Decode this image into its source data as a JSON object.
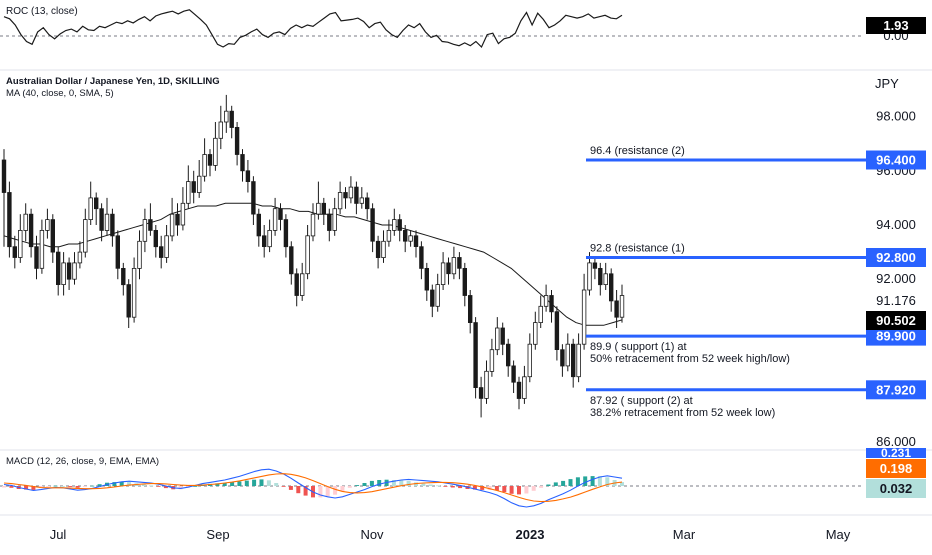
{
  "chart_data": [
    {
      "type": "line",
      "title": "ROC (13, close)",
      "series": [
        {
          "name": "ROC (13, close)",
          "values": [
            2.8,
            2.5,
            1.6,
            0.2,
            -0.8,
            -1.2,
            0.6,
            1.2,
            0.2,
            -0.4,
            0.3,
            0.8,
            1.0,
            0.6,
            1.4,
            0.9,
            0.8,
            1.4,
            1.2,
            1.6,
            2.0,
            1.8,
            2.2,
            1.9,
            2.4,
            2.8,
            2.2,
            2.9,
            3.2,
            3.4,
            3.6,
            3.2,
            3.6,
            3.8,
            3.1,
            2.4,
            1.6,
            0.2,
            -1.2,
            -1.6,
            -1.1,
            -1.2,
            -0.2,
            0.1,
            0.6,
            1.0,
            0.2,
            -0.2,
            0.4,
            0.6,
            0.2,
            1.1,
            1.6,
            1.2,
            1.6,
            1.4,
            2.0,
            2.6,
            3.2,
            3.4,
            2.2,
            2.3,
            2.4,
            2.6,
            2.1,
            1.2,
            1.8,
            2.0,
            0.9,
            0.2,
            -0.2,
            0.8,
            1.6,
            1.2,
            1.8,
            0.6,
            -0.2,
            0.1,
            -0.8,
            -0.9,
            -1.2,
            -1.4,
            -1.0,
            -1.4,
            -0.8,
            -1.6,
            0.2,
            0.4,
            -1.1,
            -0.4,
            -0.2,
            0.4,
            2.2,
            3.4,
            1.6,
            3.3,
            2.4,
            1.2,
            1.6,
            2.2,
            3.0,
            2.8,
            2.6,
            2.8,
            3.2,
            2.6,
            2.8,
            3.0,
            2.6,
            2.5,
            3.0
          ]
        }
      ],
      "value_label": "1.93",
      "zero_label": "0.00",
      "ylim": [
        -2.8,
        4.2
      ]
    },
    {
      "type": "candlestick",
      "title": "Australian Dollar / Japanese Yen, 1D, SKILLING",
      "indicator": "MA (40, close, 0, SMA, 5)",
      "currency": "JPY",
      "ylim": [
        85.6,
        99.6
      ],
      "y_ticks": [
        "98.000",
        "96.000",
        "94.000",
        "92.000",
        "86.000"
      ],
      "candles": [
        [
          96.4,
          95.2,
          96.8,
          93.2
        ],
        [
          95.2,
          93.2,
          95.6,
          92.8
        ],
        [
          93.2,
          92.8,
          93.6,
          92.4
        ],
        [
          92.8,
          93.8,
          94.4,
          92.6
        ],
        [
          93.8,
          94.4,
          94.8,
          93.4
        ],
        [
          94.4,
          93.2,
          94.6,
          92.8
        ],
        [
          93.2,
          92.4,
          93.6,
          92.0
        ],
        [
          92.4,
          93.8,
          94.2,
          92.2
        ],
        [
          93.8,
          94.2,
          94.6,
          93.5
        ],
        [
          94.2,
          93.0,
          94.4,
          92.6
        ],
        [
          93.0,
          91.8,
          93.2,
          91.4
        ],
        [
          91.8,
          92.6,
          93.0,
          91.4
        ],
        [
          92.6,
          92.0,
          92.8,
          91.6
        ],
        [
          92.0,
          92.6,
          93.0,
          91.8
        ],
        [
          92.6,
          93.0,
          93.4,
          92.4
        ],
        [
          93.0,
          94.2,
          94.6,
          92.8
        ],
        [
          94.2,
          95.0,
          95.6,
          94.0
        ],
        [
          95.0,
          94.6,
          95.2,
          94.0
        ],
        [
          94.6,
          93.8,
          94.8,
          93.4
        ],
        [
          93.8,
          94.4,
          95.0,
          93.6
        ],
        [
          94.4,
          93.6,
          94.6,
          93.2
        ],
        [
          93.6,
          92.4,
          93.8,
          92.0
        ],
        [
          92.4,
          91.8,
          92.6,
          91.4
        ],
        [
          91.8,
          90.6,
          92.0,
          90.2
        ],
        [
          90.6,
          92.4,
          92.8,
          90.4
        ],
        [
          92.4,
          93.4,
          93.8,
          92.0
        ],
        [
          93.4,
          94.2,
          94.6,
          93.0
        ],
        [
          94.2,
          93.8,
          94.8,
          93.6
        ],
        [
          93.8,
          93.2,
          94.0,
          92.8
        ],
        [
          93.2,
          92.8,
          93.6,
          92.4
        ],
        [
          92.8,
          93.6,
          94.0,
          92.6
        ],
        [
          93.6,
          94.4,
          95.0,
          93.4
        ],
        [
          94.4,
          94.0,
          94.8,
          93.6
        ],
        [
          94.0,
          94.8,
          95.4,
          93.8
        ],
        [
          94.8,
          95.6,
          96.2,
          94.6
        ],
        [
          95.6,
          95.2,
          96.0,
          94.8
        ],
        [
          95.2,
          95.8,
          96.4,
          95.0
        ],
        [
          95.8,
          96.6,
          97.2,
          95.6
        ],
        [
          96.6,
          96.2,
          96.8,
          95.8
        ],
        [
          96.2,
          97.2,
          97.8,
          96.0
        ],
        [
          97.2,
          97.8,
          98.4,
          96.8
        ],
        [
          97.8,
          98.2,
          98.8,
          97.4
        ],
        [
          98.2,
          97.6,
          98.4,
          97.2
        ],
        [
          97.6,
          96.6,
          97.8,
          96.2
        ],
        [
          96.6,
          96.0,
          96.8,
          95.6
        ],
        [
          96.0,
          95.6,
          96.4,
          95.2
        ],
        [
          95.6,
          94.4,
          95.8,
          94.0
        ],
        [
          94.4,
          93.6,
          94.6,
          93.2
        ],
        [
          93.6,
          93.2,
          94.0,
          92.8
        ],
        [
          93.2,
          93.8,
          94.2,
          93.0
        ],
        [
          93.8,
          94.6,
          95.0,
          93.6
        ],
        [
          94.6,
          94.2,
          94.8,
          93.8
        ],
        [
          94.2,
          93.2,
          94.4,
          92.8
        ],
        [
          93.2,
          92.2,
          93.4,
          91.8
        ],
        [
          92.2,
          91.4,
          92.4,
          91.0
        ],
        [
          91.4,
          92.2,
          92.6,
          91.2
        ],
        [
          92.2,
          93.6,
          94.0,
          92.0
        ],
        [
          93.6,
          94.4,
          94.8,
          93.4
        ],
        [
          94.4,
          94.8,
          95.6,
          94.2
        ],
        [
          94.8,
          94.4,
          95.0,
          94.0
        ],
        [
          94.4,
          93.8,
          94.6,
          93.4
        ],
        [
          93.8,
          94.6,
          95.0,
          93.6
        ],
        [
          94.6,
          95.2,
          95.6,
          94.4
        ],
        [
          95.2,
          95.0,
          95.4,
          94.6
        ],
        [
          95.0,
          95.4,
          95.8,
          94.8
        ],
        [
          95.4,
          94.8,
          95.6,
          94.4
        ],
        [
          94.8,
          95.0,
          95.4,
          94.6
        ],
        [
          95.0,
          94.6,
          95.2,
          94.2
        ],
        [
          94.6,
          93.4,
          94.8,
          93.0
        ],
        [
          93.4,
          92.8,
          93.6,
          92.4
        ],
        [
          92.8,
          93.4,
          93.8,
          92.6
        ],
        [
          93.4,
          93.8,
          94.2,
          93.2
        ],
        [
          93.8,
          94.2,
          94.6,
          93.6
        ],
        [
          94.2,
          93.8,
          94.4,
          93.4
        ],
        [
          93.8,
          93.4,
          94.0,
          93.0
        ],
        [
          93.4,
          93.6,
          93.8,
          93.2
        ],
        [
          93.6,
          93.2,
          93.8,
          92.8
        ],
        [
          93.2,
          92.4,
          93.4,
          92.0
        ],
        [
          92.4,
          91.6,
          92.6,
          91.2
        ],
        [
          91.6,
          91.0,
          91.8,
          90.6
        ],
        [
          91.0,
          91.8,
          92.2,
          90.8
        ],
        [
          91.8,
          92.6,
          93.0,
          91.6
        ],
        [
          92.6,
          92.2,
          92.8,
          91.8
        ],
        [
          92.2,
          92.8,
          93.2,
          92.0
        ],
        [
          92.8,
          92.4,
          93.0,
          92.0
        ],
        [
          92.4,
          91.4,
          92.6,
          91.0
        ],
        [
          91.4,
          90.4,
          91.6,
          90.0
        ],
        [
          90.4,
          88.0,
          90.6,
          87.6
        ],
        [
          88.0,
          87.6,
          88.4,
          86.9
        ],
        [
          87.6,
          88.6,
          89.0,
          87.4
        ],
        [
          88.6,
          89.4,
          89.8,
          88.4
        ],
        [
          89.4,
          90.2,
          90.6,
          89.2
        ],
        [
          90.2,
          89.6,
          90.4,
          89.2
        ],
        [
          89.6,
          88.8,
          89.8,
          88.4
        ],
        [
          88.8,
          88.2,
          89.0,
          87.8
        ],
        [
          88.2,
          87.6,
          88.4,
          87.2
        ],
        [
          87.6,
          88.4,
          88.8,
          87.4
        ],
        [
          88.4,
          89.6,
          90.0,
          88.2
        ],
        [
          89.6,
          90.4,
          90.8,
          89.4
        ],
        [
          90.4,
          91.0,
          91.4,
          90.2
        ],
        [
          91.0,
          91.4,
          91.8,
          90.8
        ],
        [
          91.4,
          90.8,
          91.6,
          90.4
        ],
        [
          90.8,
          89.4,
          91.0,
          89.0
        ],
        [
          89.4,
          88.8,
          89.6,
          88.4
        ],
        [
          88.8,
          89.6,
          90.0,
          88.6
        ],
        [
          89.6,
          88.4,
          89.8,
          88.0
        ],
        [
          88.4,
          89.6,
          90.0,
          88.2
        ],
        [
          89.6,
          91.6,
          92.2,
          89.4
        ],
        [
          91.6,
          92.6,
          93.0,
          91.4
        ],
        [
          92.6,
          92.4,
          92.8,
          92.0
        ],
        [
          92.4,
          91.8,
          92.6,
          91.4
        ],
        [
          91.8,
          92.2,
          92.6,
          91.6
        ],
        [
          92.2,
          91.2,
          92.4,
          90.8
        ],
        [
          91.2,
          90.6,
          91.6,
          90.2
        ],
        [
          90.6,
          91.4,
          91.8,
          90.4
        ]
      ],
      "ma": [
        93.6,
        93.5,
        93.4,
        93.3,
        93.3,
        93.2,
        93.2,
        93.3,
        93.3,
        93.4,
        93.5,
        93.6,
        93.7,
        93.8,
        93.9,
        94.0,
        94.1,
        94.2,
        94.4,
        94.5,
        94.6,
        94.7,
        94.7,
        94.7,
        94.8,
        94.8,
        94.8,
        94.8,
        94.7,
        94.7,
        94.6,
        94.6,
        94.5,
        94.5,
        94.4,
        94.4,
        94.4,
        94.3,
        94.3,
        94.2,
        94.1,
        94.0,
        94.0,
        93.9,
        93.8,
        93.7,
        93.6,
        93.5,
        93.4,
        93.3,
        93.2,
        93.1,
        93.0,
        92.8,
        92.6,
        92.4,
        92.1,
        91.8,
        91.5,
        91.2,
        90.9,
        90.6,
        90.4,
        90.3,
        90.3,
        90.3,
        90.4,
        90.5
      ],
      "ma_start": 46,
      "last_price_label": "91.176",
      "current_price_label": "90.502",
      "levels": [
        {
          "value": 96.4,
          "label_lines": [
            "96.4 (resistance (2)"
          ],
          "axis_label": "96.400"
        },
        {
          "value": 92.8,
          "label_lines": [
            "92.8 (resistance (1)"
          ],
          "axis_label": "92.800"
        },
        {
          "value": 89.9,
          "label_lines": [
            "89.9 ( support (1) at",
            "50% retracement from 52 week high/low)"
          ],
          "axis_label": "89.900"
        },
        {
          "value": 87.92,
          "label_lines": [
            "87.92 ( support (2) at",
            "38.2% retracement from 52 week low)"
          ],
          "axis_label": "87.920"
        }
      ]
    },
    {
      "type": "line",
      "title": "MACD (12, 26, close, 9, EMA, EMA)",
      "series": [
        {
          "name": "MACD",
          "color": "#2962ff",
          "values": [
            0.05,
            0.02,
            -0.05,
            -0.1,
            -0.15,
            -0.12,
            -0.08,
            -0.05,
            -0.06,
            -0.1,
            -0.14,
            -0.12,
            -0.08,
            -0.02,
            0.05,
            0.1,
            0.14,
            0.16,
            0.14,
            0.12,
            0.1,
            0.06,
            0.0,
            -0.06,
            -0.08,
            -0.04,
            0.02,
            0.08,
            0.12,
            0.16,
            0.2,
            0.26,
            0.32,
            0.4,
            0.48,
            0.54,
            0.56,
            0.5,
            0.4,
            0.26,
            0.1,
            -0.05,
            -0.2,
            -0.3,
            -0.36,
            -0.4,
            -0.36,
            -0.28,
            -0.2,
            -0.12,
            -0.02,
            0.06,
            0.12,
            0.16,
            0.2,
            0.22,
            0.2,
            0.18,
            0.16,
            0.14,
            0.1,
            0.06,
            0.02,
            -0.04,
            -0.1,
            -0.16,
            -0.22,
            -0.3,
            -0.42,
            -0.56,
            -0.66,
            -0.7,
            -0.66,
            -0.58,
            -0.46,
            -0.36,
            -0.26,
            -0.14,
            0.0,
            0.12,
            0.22,
            0.3,
            0.34,
            0.3,
            0.26
          ]
        },
        {
          "name": "Signal",
          "color": "#ff6d00",
          "values": [
            0.1,
            0.08,
            0.05,
            0.02,
            -0.02,
            -0.05,
            -0.06,
            -0.06,
            -0.06,
            -0.07,
            -0.08,
            -0.09,
            -0.09,
            -0.08,
            -0.06,
            -0.03,
            0.0,
            0.03,
            0.05,
            0.07,
            0.08,
            0.08,
            0.07,
            0.05,
            0.03,
            0.02,
            0.02,
            0.03,
            0.05,
            0.07,
            0.1,
            0.13,
            0.17,
            0.22,
            0.27,
            0.32,
            0.37,
            0.4,
            0.41,
            0.39,
            0.34,
            0.27,
            0.18,
            0.08,
            -0.02,
            -0.11,
            -0.18,
            -0.22,
            -0.23,
            -0.22,
            -0.19,
            -0.14,
            -0.09,
            -0.04,
            0.01,
            0.05,
            0.08,
            0.1,
            0.11,
            0.12,
            0.12,
            0.11,
            0.09,
            0.06,
            0.02,
            -0.03,
            -0.09,
            -0.15,
            -0.22,
            -0.3,
            -0.38,
            -0.45,
            -0.5,
            -0.52,
            -0.51,
            -0.48,
            -0.43,
            -0.37,
            -0.29,
            -0.2,
            -0.11,
            -0.03,
            0.05,
            0.1,
            0.13
          ]
        }
      ],
      "value_labels": {
        "macd": "0.231",
        "signal": "0.198",
        "histogram": "0.032"
      },
      "ylim": [
        -0.8,
        0.7
      ]
    }
  ],
  "x_axis": {
    "labels": [
      "Jul",
      "Sep",
      "Nov",
      "2023",
      "Mar",
      "May"
    ]
  },
  "colors": {
    "up": "#1a1a1a",
    "down": "#1a1a1a",
    "ma": "#1a1a1a",
    "level": "#2962ff",
    "label_black": "#000000",
    "macd_blue": "#2962ff",
    "signal_orange": "#ff6d00",
    "hist_green": "#26a69a",
    "hist_red": "#ef5350",
    "hist_label_bg": "#b2dfdb"
  }
}
